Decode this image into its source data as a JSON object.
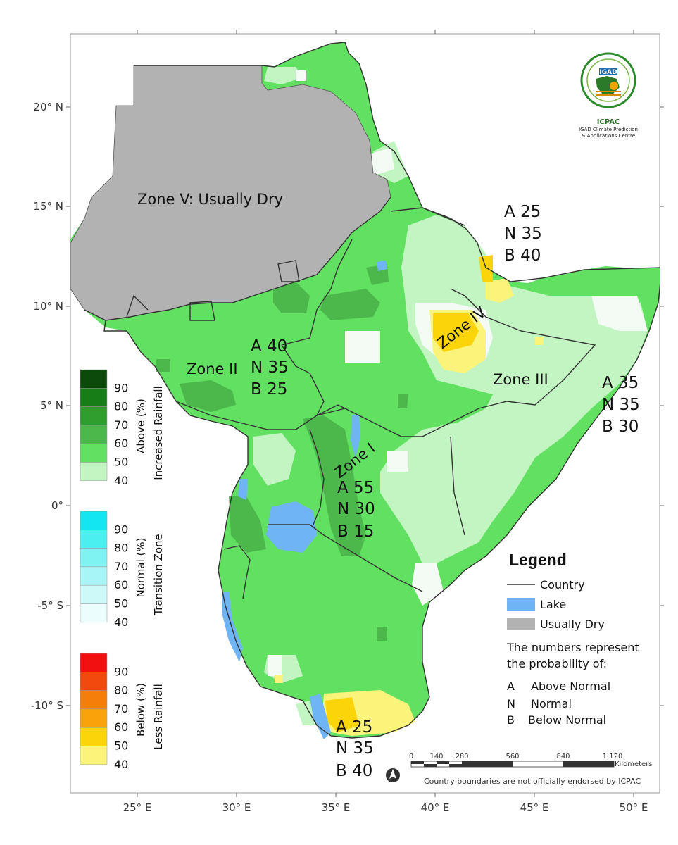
{
  "axes": {
    "x_ticks": [
      "25° E",
      "30° E",
      "35° E",
      "40° E",
      "45° E",
      "50° E"
    ],
    "y_ticks": [
      "20° N",
      "15° N",
      "10° N",
      "5° N",
      "0°",
      "-5° S",
      "-10° S"
    ]
  },
  "zones": {
    "zone5": "Zone V:  Usually Dry",
    "zone2": "Zone II",
    "zone3": "Zone III",
    "zone4": "Zone IV",
    "zone1": "Zone I"
  },
  "probabilities": {
    "zone2": [
      "A 40",
      "N 35",
      "B 25"
    ],
    "zone4": [
      "A 25",
      "N 35",
      "B 40"
    ],
    "zone3": [
      "A 35",
      "N 35",
      "B 30"
    ],
    "zone1": [
      "A 55",
      "N 30",
      "B 15"
    ],
    "south": [
      "A 25",
      "N 35",
      "B 40"
    ]
  },
  "colorbars": [
    {
      "label": "Above (%)",
      "sublabel": "Increased Rainfall",
      "levels": [
        "90",
        "80",
        "70",
        "60",
        "50",
        "40"
      ],
      "colors": [
        "#0b4a0b",
        "#177d17",
        "#2f9e2f",
        "#4cb84c",
        "#62e062",
        "#c2f5c2"
      ]
    },
    {
      "label": "Normal (%)",
      "sublabel": "Transition Zone",
      "levels": [
        "90",
        "80",
        "70",
        "60",
        "50",
        "40"
      ],
      "colors": [
        "#14e6ef",
        "#4cefef",
        "#7ff2f2",
        "#a8f5f5",
        "#cdf9f9",
        "#ebfdfd"
      ]
    },
    {
      "label": "Below (%)",
      "sublabel": "Less Rainfall",
      "levels": [
        "90",
        "80",
        "70",
        "60",
        "50",
        "40"
      ],
      "colors": [
        "#f21010",
        "#f24a0d",
        "#f57d0a",
        "#faa20a",
        "#fbd40a",
        "#fbf47a"
      ]
    }
  ],
  "legend": {
    "title": "Legend",
    "items": [
      {
        "label": "Country",
        "kind": "line",
        "color": "#333333"
      },
      {
        "label": "Lake",
        "kind": "fill",
        "color": "#6fb4f4"
      },
      {
        "label": "Usually Dry",
        "kind": "fill",
        "color": "#b2b2b2"
      }
    ],
    "note_line1": "The numbers represent",
    "note_line2": "the probability of:",
    "codes": [
      {
        "code": "A",
        "text": "Above Normal"
      },
      {
        "code": "N",
        "text": "Normal"
      },
      {
        "code": "B",
        "text": "Below Normal"
      }
    ]
  },
  "scalebar": {
    "labels": [
      "0",
      "140",
      "280",
      "560",
      "840",
      "1,120"
    ],
    "unit": "Kilometers"
  },
  "disclaimer": "Country boundaries are not officially endorsed by ICPAC",
  "logo": {
    "badge": "IGAD",
    "name": "ICPAC",
    "line1": "IGAD Climate Prediction",
    "line2": "& Applications Centre"
  },
  "north_arrow_icon": "north-arrow-icon"
}
